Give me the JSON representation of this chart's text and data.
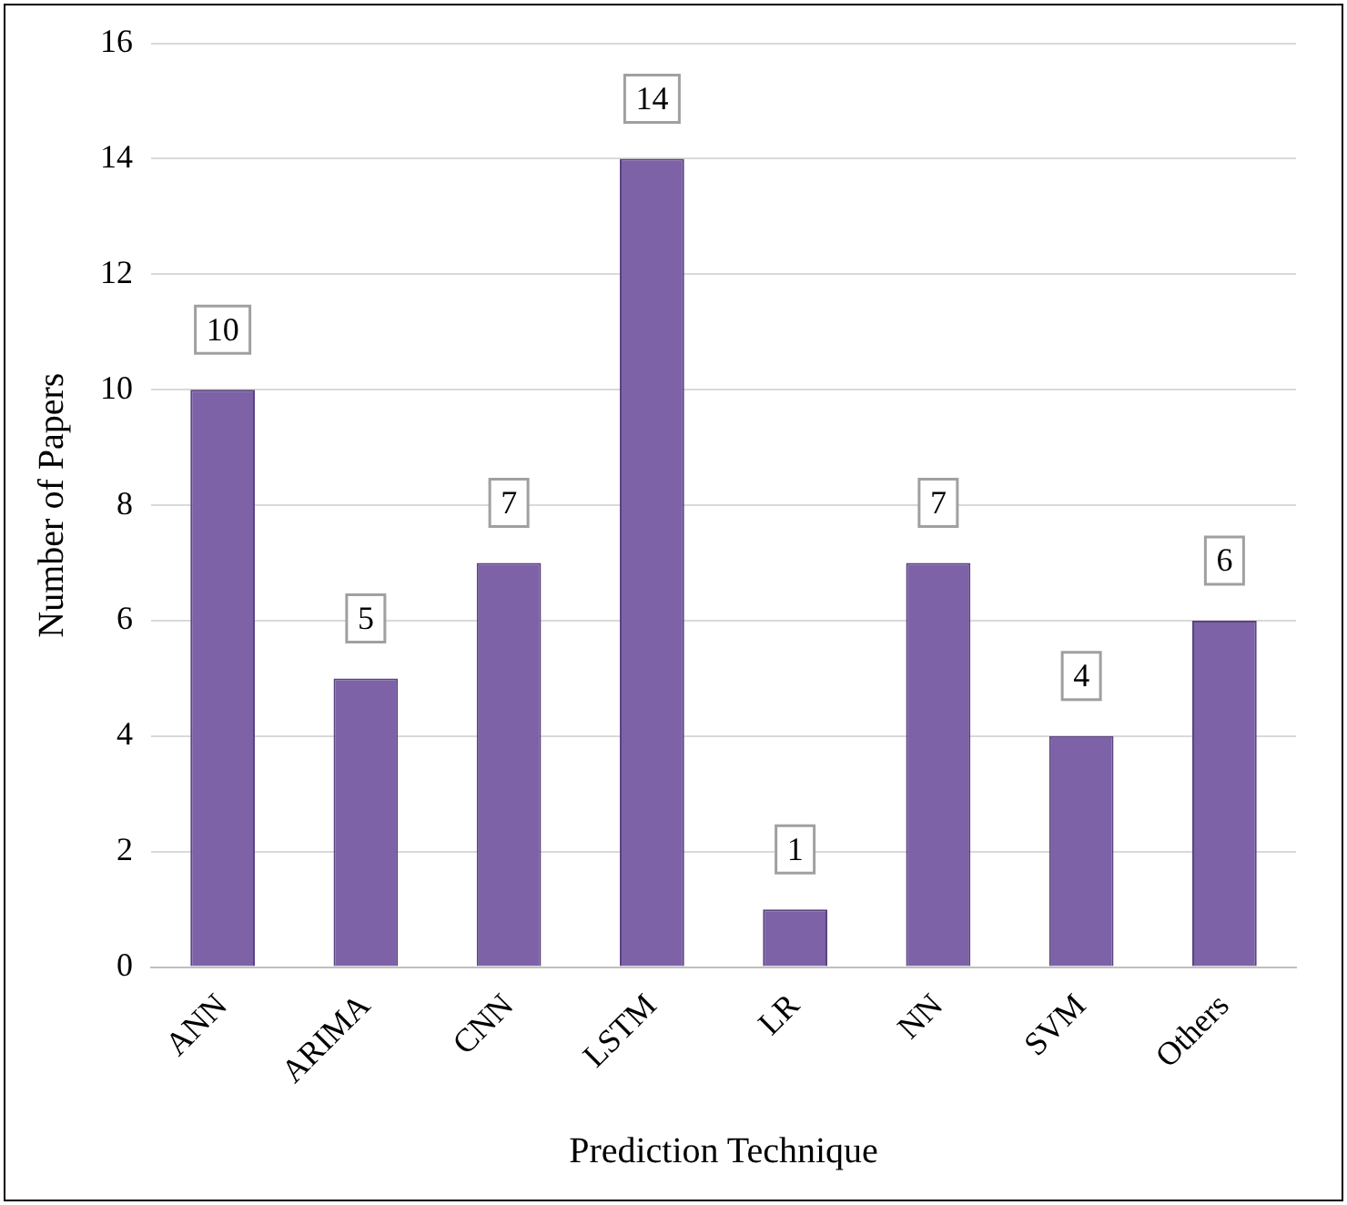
{
  "chart_data": {
    "type": "bar",
    "xlabel": "Prediction Technique",
    "ylabel": "Number of Papers",
    "categories": [
      "ANN",
      "ARIMA",
      "CNN",
      "LSTM",
      "LR",
      "NN",
      "SVM",
      "Others"
    ],
    "values": [
      10,
      5,
      7,
      14,
      1,
      7,
      4,
      6
    ],
    "color": "#7d62a8",
    "ylim": [
      0,
      16
    ],
    "yticks": [
      0,
      2,
      4,
      6,
      8,
      10,
      12,
      14,
      16
    ],
    "grid": "y",
    "legend": false,
    "data_labels": true
  }
}
